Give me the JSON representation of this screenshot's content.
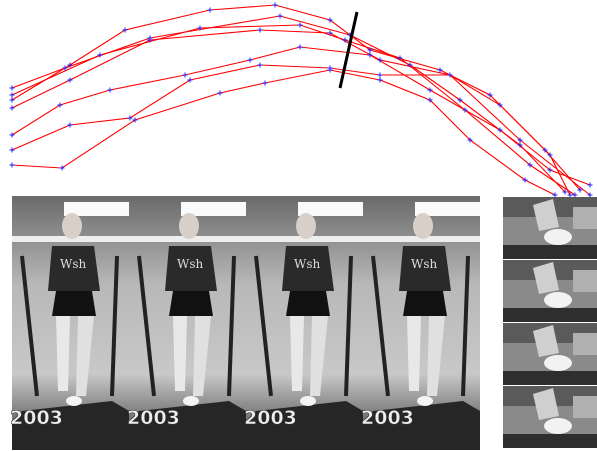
{
  "frames": [
    {
      "timestamp": "2003"
    },
    {
      "timestamp": "2003"
    },
    {
      "timestamp": "2003"
    },
    {
      "timestamp": "2003"
    }
  ]
}
